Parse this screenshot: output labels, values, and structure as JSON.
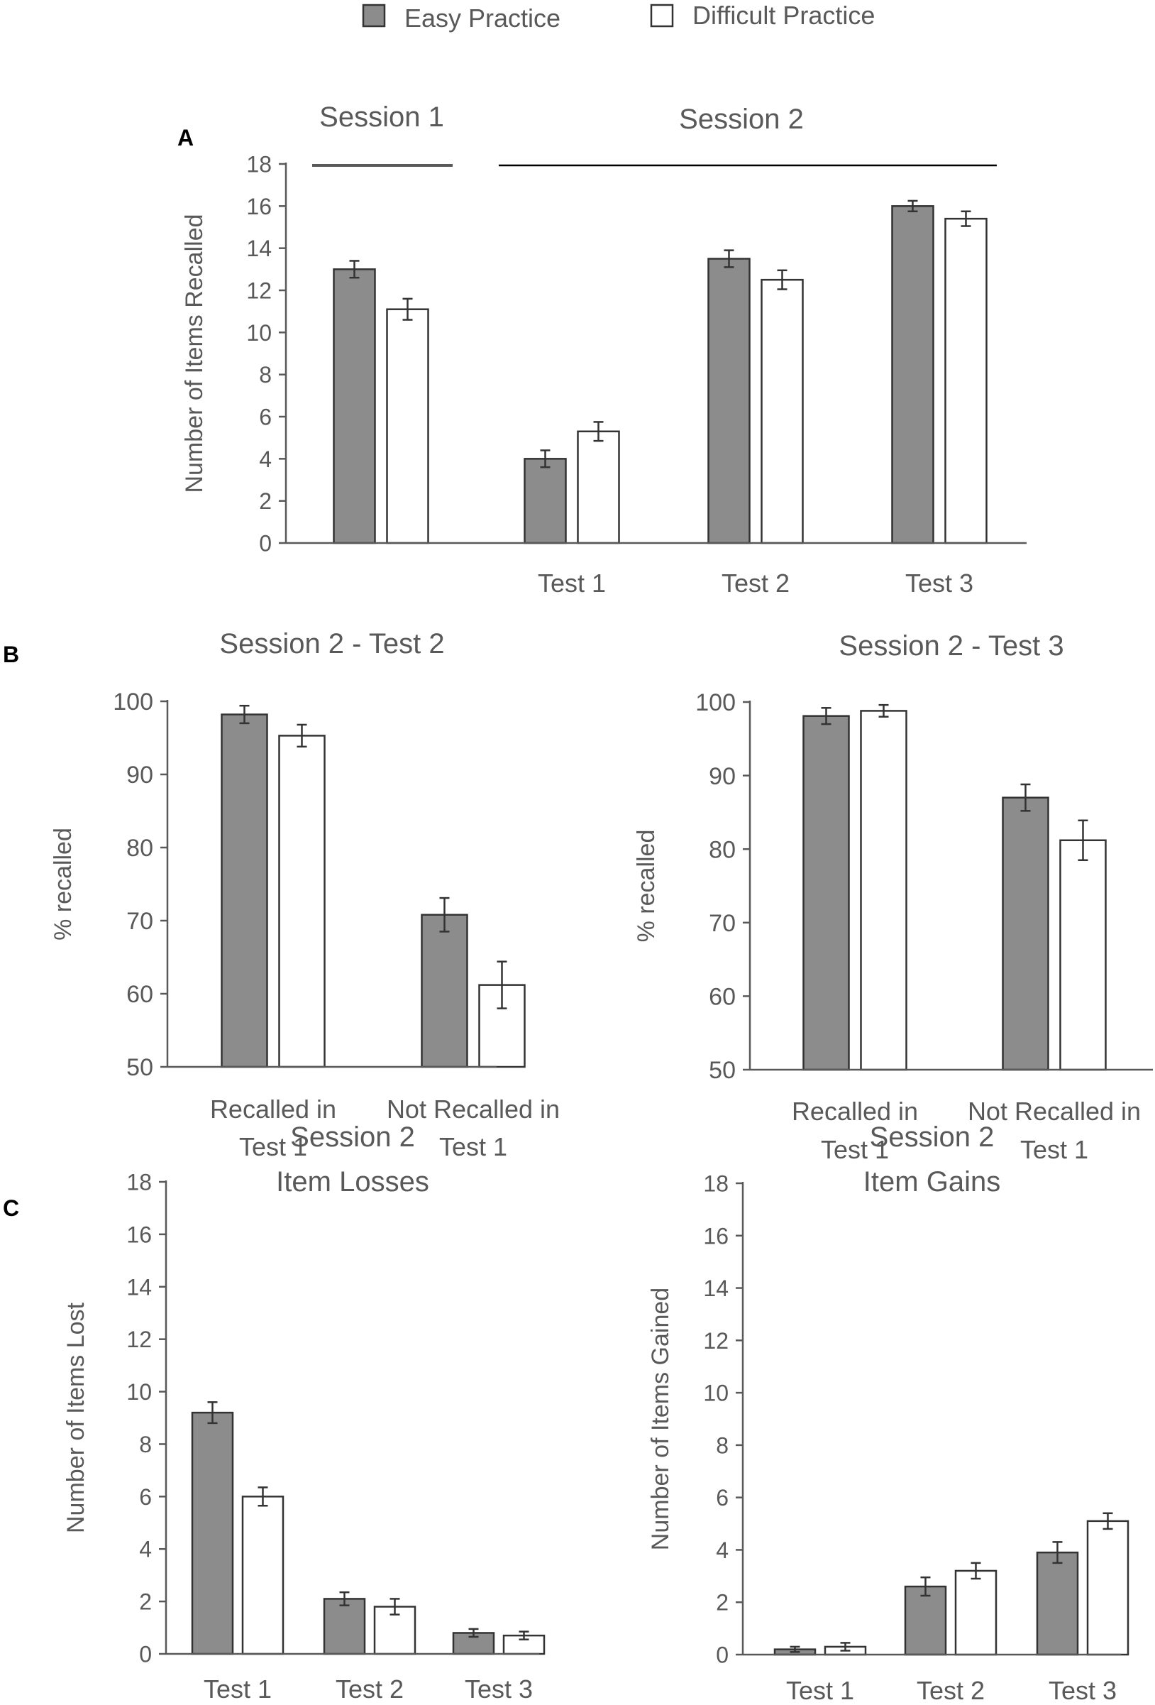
{
  "legend": {
    "items": [
      {
        "label": "Easy Practice",
        "color": "#8c8c8c"
      },
      {
        "label": "Difficult Practice",
        "color": "#ffffff"
      }
    ]
  },
  "colors": {
    "easy": "#8c8c8c",
    "difficult": "#ffffff",
    "axis": "#595959",
    "text": "#595959"
  },
  "panels": {
    "a": "A",
    "b": "B",
    "c": "C"
  },
  "chart_data": [
    {
      "id": "A",
      "type": "bar",
      "title": "",
      "session_labels": [
        "Session 1",
        "Session 2"
      ],
      "categories": [
        "",
        "Test 1",
        "Test 2",
        "Test 3"
      ],
      "ylabel": "Number of Items Recalled",
      "ylim": [
        0,
        18
      ],
      "yticks": [
        0,
        2,
        4,
        6,
        8,
        10,
        12,
        14,
        16,
        18
      ],
      "series": [
        {
          "name": "Easy Practice",
          "values": [
            13.0,
            4.0,
            13.5,
            16.0
          ],
          "errors": [
            0.4,
            0.4,
            0.4,
            0.25
          ]
        },
        {
          "name": "Difficult Practice",
          "values": [
            11.1,
            5.3,
            12.5,
            15.4
          ],
          "errors": [
            0.5,
            0.45,
            0.45,
            0.35
          ]
        }
      ]
    },
    {
      "id": "B1",
      "type": "bar",
      "title": "Session 2 - Test 2",
      "categories": [
        [
          "Recalled in",
          "Test 1"
        ],
        [
          "Not Recalled in",
          "Test 1"
        ]
      ],
      "ylabel": "% recalled",
      "ylim": [
        50,
        100
      ],
      "yticks": [
        50,
        60,
        70,
        80,
        90,
        100
      ],
      "series": [
        {
          "name": "Easy Practice",
          "values": [
            98.2,
            70.8
          ],
          "errors": [
            1.2,
            2.3
          ]
        },
        {
          "name": "Difficult Practice",
          "values": [
            95.3,
            61.2
          ],
          "errors": [
            1.5,
            3.2
          ]
        }
      ]
    },
    {
      "id": "B2",
      "type": "bar",
      "title": "Session 2 - Test 3",
      "categories": [
        [
          "Recalled in",
          "Test 1"
        ],
        [
          "Not Recalled in",
          "Test 1"
        ]
      ],
      "ylabel": "% recalled",
      "ylim": [
        50,
        100
      ],
      "yticks": [
        50,
        60,
        70,
        80,
        90,
        100
      ],
      "series": [
        {
          "name": "Easy Practice",
          "values": [
            98.1,
            87.0
          ],
          "errors": [
            1.1,
            1.8
          ]
        },
        {
          "name": "Difficult Practice",
          "values": [
            98.8,
            81.2
          ],
          "errors": [
            0.8,
            2.7
          ]
        }
      ]
    },
    {
      "id": "C1",
      "type": "bar",
      "title": "Session 2",
      "subtitle": "Item Losses",
      "categories": [
        "Test 1",
        "Test 2",
        "Test 3"
      ],
      "ylabel": "Number of Items Lost",
      "ylim": [
        0,
        18
      ],
      "yticks": [
        0,
        2,
        4,
        6,
        8,
        10,
        12,
        14,
        16,
        18
      ],
      "series": [
        {
          "name": "Easy Practice",
          "values": [
            9.2,
            2.1,
            0.8
          ],
          "errors": [
            0.4,
            0.25,
            0.15
          ]
        },
        {
          "name": "Difficult Practice",
          "values": [
            6.0,
            1.8,
            0.7
          ],
          "errors": [
            0.35,
            0.3,
            0.15
          ]
        }
      ]
    },
    {
      "id": "C2",
      "type": "bar",
      "title": "Session 2",
      "subtitle": "Item Gains",
      "categories": [
        "Test 1",
        "Test 2",
        "Test 3"
      ],
      "ylabel": "Number of Items Gained",
      "ylim": [
        0,
        18
      ],
      "yticks": [
        0,
        2,
        4,
        6,
        8,
        10,
        12,
        14,
        16,
        18
      ],
      "series": [
        {
          "name": "Easy Practice",
          "values": [
            0.2,
            2.6,
            3.9
          ],
          "errors": [
            0.1,
            0.35,
            0.4
          ]
        },
        {
          "name": "Difficult Practice",
          "values": [
            0.3,
            3.2,
            5.1
          ],
          "errors": [
            0.15,
            0.3,
            0.3
          ]
        }
      ]
    }
  ]
}
